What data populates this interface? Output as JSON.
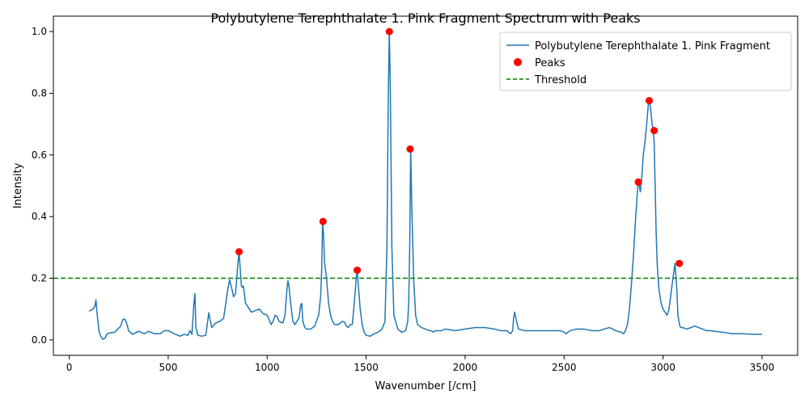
{
  "chart_data": {
    "type": "line",
    "title": "Polybutylene Terephthalate 1. Pink Fragment Spectrum with Peaks",
    "xlabel": "Wavenumber [/cm]",
    "ylabel": "Intensity",
    "xlim": [
      -80,
      3680
    ],
    "ylim": [
      -0.05,
      1.05
    ],
    "xticks": [
      0,
      500,
      1000,
      1500,
      2000,
      2500,
      3000,
      3500
    ],
    "yticks": [
      0.0,
      0.2,
      0.4,
      0.6,
      0.8,
      1.0
    ],
    "grid": false,
    "legend_position": "top-right",
    "series": [
      {
        "name": "Polybutylene Terephthalate 1. Pink Fragment",
        "color": "#1f77b4",
        "x": [
          100,
          120,
          130,
          135,
          140,
          150,
          160,
          170,
          180,
          190,
          200,
          230,
          260,
          270,
          280,
          290,
          300,
          320,
          350,
          380,
          400,
          430,
          460,
          480,
          500,
          530,
          560,
          580,
          600,
          610,
          620,
          630,
          635,
          640,
          650,
          670,
          690,
          705,
          710,
          720,
          740,
          760,
          780,
          800,
          810,
          820,
          830,
          840,
          850,
          858,
          865,
          870,
          875,
          880,
          885,
          890,
          900,
          920,
          940,
          960,
          980,
          1000,
          1020,
          1030,
          1040,
          1050,
          1060,
          1080,
          1090,
          1100,
          1105,
          1110,
          1120,
          1130,
          1140,
          1150,
          1160,
          1170,
          1175,
          1180,
          1190,
          1200,
          1220,
          1240,
          1260,
          1270,
          1275,
          1280,
          1285,
          1290,
          1300,
          1310,
          1320,
          1330,
          1340,
          1360,
          1370,
          1380,
          1390,
          1400,
          1410,
          1420,
          1430,
          1440,
          1450,
          1455,
          1460,
          1470,
          1480,
          1490,
          1500,
          1520,
          1540,
          1560,
          1580,
          1595,
          1605,
          1612,
          1617,
          1622,
          1630,
          1640,
          1660,
          1680,
          1700,
          1710,
          1715,
          1720,
          1725,
          1730,
          1740,
          1750,
          1760,
          1780,
          1800,
          1820,
          1830,
          1840,
          1850,
          1880,
          1900,
          1950,
          2000,
          2050,
          2100,
          2150,
          2180,
          2200,
          2210,
          2220,
          2230,
          2240,
          2245,
          2250,
          2260,
          2270,
          2300,
          2350,
          2400,
          2450,
          2480,
          2500,
          2510,
          2520,
          2530,
          2560,
          2600,
          2640,
          2680,
          2700,
          2730,
          2760,
          2790,
          2800,
          2810,
          2820,
          2830,
          2840,
          2850,
          2860,
          2870,
          2875,
          2880,
          2885,
          2890,
          2895,
          2900,
          2910,
          2920,
          2925,
          2930,
          2935,
          2940,
          2945,
          2950,
          2955,
          2960,
          2965,
          2970,
          2975,
          2980,
          2990,
          3000,
          3010,
          3020,
          3030,
          3040,
          3050,
          3060,
          3070,
          3075,
          3080,
          3085,
          3090,
          3100,
          3120,
          3140,
          3160,
          3180,
          3200,
          3220,
          3240,
          3260,
          3300,
          3350,
          3400,
          3450,
          3500
        ],
        "y": [
          0.093,
          0.1,
          0.11,
          0.13,
          0.09,
          0.03,
          0.01,
          0.002,
          0.005,
          0.018,
          0.022,
          0.025,
          0.045,
          0.065,
          0.068,
          0.055,
          0.03,
          0.018,
          0.028,
          0.02,
          0.028,
          0.02,
          0.02,
          0.03,
          0.03,
          0.02,
          0.012,
          0.018,
          0.015,
          0.03,
          0.018,
          0.12,
          0.15,
          0.04,
          0.015,
          0.012,
          0.015,
          0.088,
          0.07,
          0.04,
          0.055,
          0.06,
          0.07,
          0.16,
          0.195,
          0.17,
          0.14,
          0.15,
          0.23,
          0.286,
          0.22,
          0.175,
          0.17,
          0.175,
          0.15,
          0.12,
          0.11,
          0.09,
          0.095,
          0.1,
          0.085,
          0.08,
          0.05,
          0.06,
          0.08,
          0.075,
          0.06,
          0.055,
          0.08,
          0.165,
          0.192,
          0.175,
          0.11,
          0.06,
          0.05,
          0.06,
          0.07,
          0.115,
          0.118,
          0.06,
          0.04,
          0.035,
          0.035,
          0.045,
          0.08,
          0.14,
          0.22,
          0.384,
          0.34,
          0.25,
          0.2,
          0.12,
          0.08,
          0.06,
          0.05,
          0.05,
          0.055,
          0.06,
          0.058,
          0.045,
          0.04,
          0.05,
          0.05,
          0.12,
          0.2,
          0.226,
          0.18,
          0.1,
          0.05,
          0.025,
          0.015,
          0.012,
          0.02,
          0.025,
          0.035,
          0.06,
          0.3,
          0.8,
          1.0,
          0.82,
          0.3,
          0.08,
          0.035,
          0.025,
          0.03,
          0.06,
          0.12,
          0.3,
          0.619,
          0.45,
          0.2,
          0.08,
          0.05,
          0.04,
          0.035,
          0.03,
          0.03,
          0.025,
          0.03,
          0.03,
          0.035,
          0.03,
          0.035,
          0.04,
          0.04,
          0.035,
          0.03,
          0.03,
          0.03,
          0.025,
          0.02,
          0.03,
          0.07,
          0.09,
          0.06,
          0.035,
          0.03,
          0.03,
          0.03,
          0.03,
          0.03,
          0.025,
          0.02,
          0.025,
          0.03,
          0.035,
          0.035,
          0.03,
          0.03,
          0.035,
          0.04,
          0.03,
          0.025,
          0.02,
          0.03,
          0.05,
          0.1,
          0.18,
          0.27,
          0.38,
          0.48,
          0.512,
          0.5,
          0.48,
          0.51,
          0.55,
          0.6,
          0.65,
          0.72,
          0.76,
          0.776,
          0.76,
          0.73,
          0.7,
          0.679,
          0.64,
          0.5,
          0.35,
          0.25,
          0.2,
          0.16,
          0.12,
          0.1,
          0.09,
          0.08,
          0.1,
          0.15,
          0.2,
          0.248,
          0.16,
          0.08,
          0.06,
          0.045,
          0.04,
          0.04,
          0.035,
          0.04,
          0.045,
          0.04,
          0.035,
          0.03,
          0.03,
          0.028,
          0.025,
          0.02,
          0.02,
          0.018,
          0.018
        ]
      }
    ],
    "peaks": {
      "name": "Peaks",
      "color": "#ff0000",
      "x": [
        858,
        1282,
        1455,
        1617,
        1722,
        2875,
        2930,
        2955,
        3082
      ],
      "y": [
        0.286,
        0.384,
        0.226,
        1.0,
        0.619,
        0.512,
        0.776,
        0.679,
        0.248
      ]
    },
    "threshold": {
      "name": "Threshold",
      "color": "#008000",
      "value": 0.2
    }
  }
}
